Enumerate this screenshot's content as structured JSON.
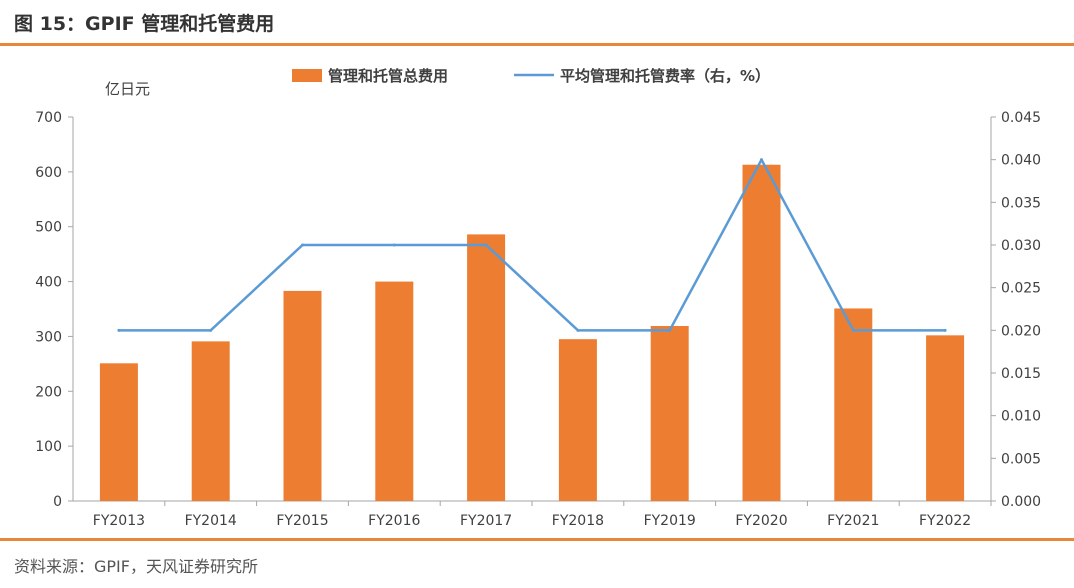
{
  "figure": {
    "title": "图 15：GPIF 管理和托管费用",
    "source": "资料来源：GPIF，天风证券研究所"
  },
  "colors": {
    "accent": "#e8873a",
    "bar": "#ed7d31",
    "line": "#5b9bd5"
  },
  "chart_data": {
    "type": "bar",
    "title": "",
    "categories": [
      "FY2013",
      "FY2014",
      "FY2015",
      "FY2016",
      "FY2017",
      "FY2018",
      "FY2019",
      "FY2020",
      "FY2021",
      "FY2022"
    ],
    "series": [
      {
        "name": "管理和托管总费用",
        "type": "bar",
        "axis": "left",
        "values": [
          251,
          291,
          383,
          400,
          486,
          295,
          319,
          613,
          351,
          302
        ]
      },
      {
        "name": "平均管理和托管费率（右，%）",
        "type": "line",
        "axis": "right",
        "values": [
          0.02,
          0.02,
          0.03,
          0.03,
          0.03,
          0.02,
          0.02,
          0.04,
          0.02,
          0.02
        ]
      }
    ],
    "ylabel": "亿日元",
    "ylim": [
      0,
      700
    ],
    "yticks": [
      "0",
      "100",
      "200",
      "300",
      "400",
      "500",
      "600",
      "700"
    ],
    "y2lim": [
      0,
      0.045
    ],
    "y2ticks": [
      "0.000",
      "0.005",
      "0.010",
      "0.015",
      "0.020",
      "0.025",
      "0.030",
      "0.035",
      "0.040",
      "0.045"
    ],
    "grid": false,
    "legend": "top"
  }
}
